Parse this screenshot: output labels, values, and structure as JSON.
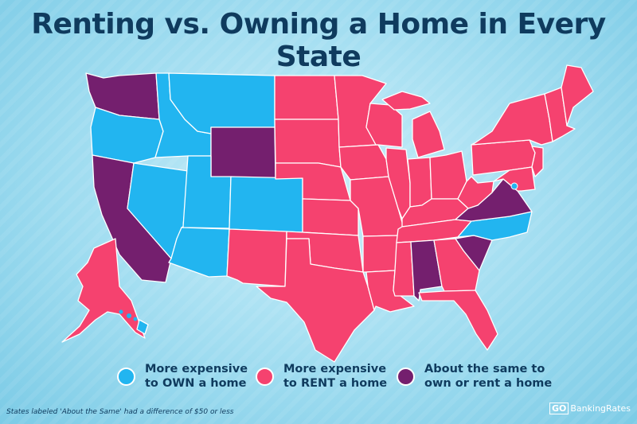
{
  "title": "Renting vs. Owning a Home in Every State",
  "colors": {
    "own": "#22b5f0",
    "rent": "#f5426f",
    "same": "#741f6e",
    "title": "#0f3b5e"
  },
  "legend": [
    {
      "key": "own",
      "line1": "More expensive",
      "line2": "to OWN a home"
    },
    {
      "key": "rent",
      "line1": "More expensive",
      "line2": "to RENT a home"
    },
    {
      "key": "same",
      "line1": "About the same to",
      "line2": "own or rent a home"
    }
  ],
  "states": {
    "WA": "same",
    "OR": "own",
    "CA": "same",
    "NV": "own",
    "ID": "own",
    "MT": "own",
    "WY": "same",
    "UT": "own",
    "CO": "own",
    "AZ": "own",
    "NM": "rent",
    "ND": "rent",
    "SD": "rent",
    "NE": "rent",
    "KS": "rent",
    "OK": "rent",
    "TX": "rent",
    "MN": "rent",
    "IA": "rent",
    "MO": "rent",
    "AR": "rent",
    "LA": "rent",
    "WI": "rent",
    "IL": "rent",
    "MI": "rent",
    "IN": "rent",
    "OH": "rent",
    "KY": "rent",
    "TN": "rent",
    "MS": "rent",
    "AL": "same",
    "GA": "rent",
    "FL": "rent",
    "SC": "same",
    "NC": "own",
    "VA": "same",
    "WV": "rent",
    "PA": "rent",
    "NY": "rent",
    "NE_ENG": "rent",
    "ME": "rent",
    "NJ": "rent",
    "MD": "rent",
    "DC": "own",
    "AK": "rent",
    "HI": "own"
  },
  "footnote": "States labeled 'About the Same' had a difference of $50 or less",
  "brand": {
    "go": "GO",
    "name": "BankingRates"
  }
}
